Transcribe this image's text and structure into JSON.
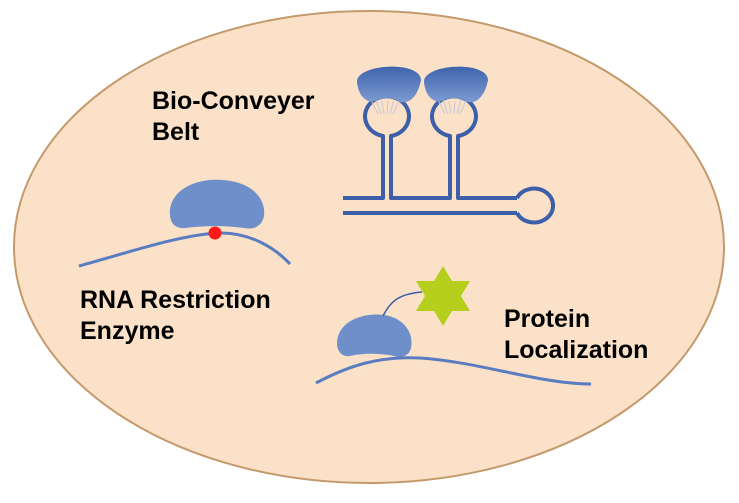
{
  "diagram": {
    "labels": {
      "bio_conveyer_belt": {
        "line1": "Bio-Conveyer",
        "line2": "Belt"
      },
      "rna_restriction_enzyme": {
        "line1": "RNA Restriction",
        "line2": "Enzyme"
      },
      "protein_localization": {
        "line1": "Protein",
        "line2": "Localization"
      }
    },
    "colors": {
      "cell_fill": "#fae1c8",
      "cell_border": "#c49a6c",
      "rna_strand": "#3d5ea8",
      "ribosome_light": "#6e8fc9",
      "ribosome_dark": "#4a6fb3",
      "cut_site": "#ff1a1a",
      "protein_star": "#b5cf1c"
    },
    "icons": [
      "ribosome",
      "rna-hairpin",
      "cut-site-dot",
      "protein-star"
    ]
  }
}
